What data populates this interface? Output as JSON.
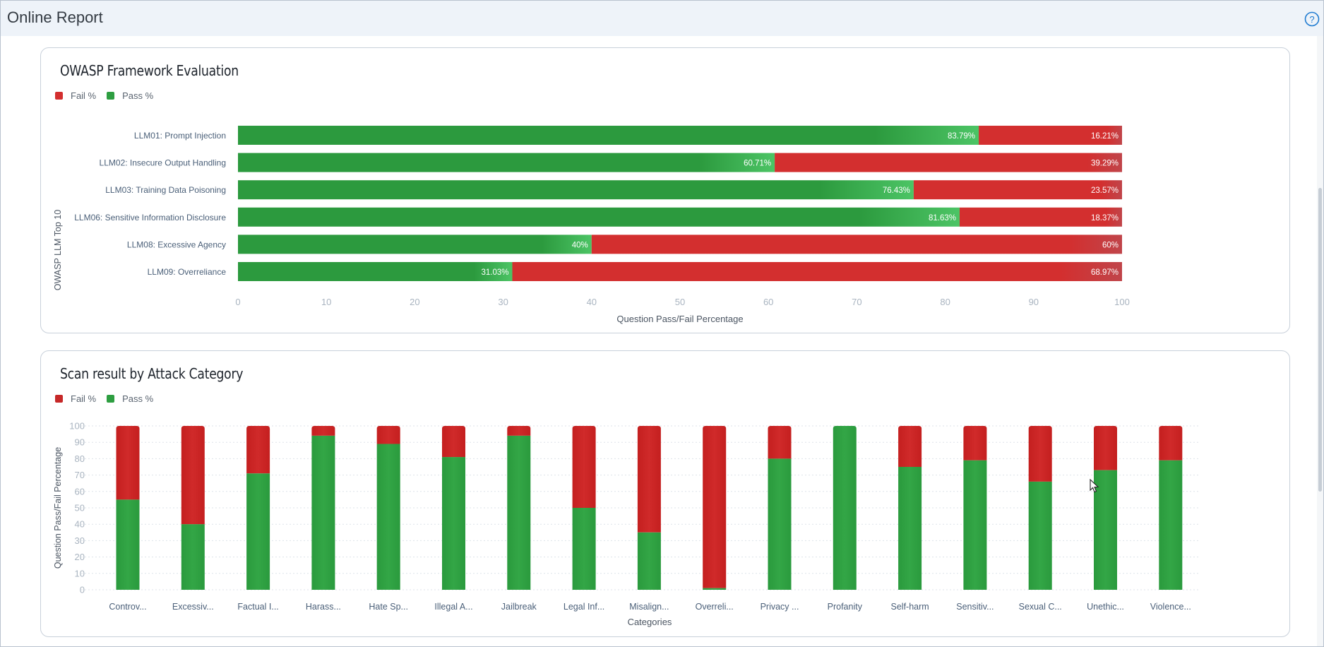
{
  "app": {
    "title": "Online Report",
    "help_icon": "help-circle-icon"
  },
  "colors": {
    "fail": "#d32f2f",
    "pass": "#2e9e41",
    "fail_dark": "#b71c1c",
    "pass_dark": "#2c9a3e"
  },
  "owasp_card": {
    "title": "OWASP Framework Evaluation",
    "legend": [
      {
        "label": "Fail %",
        "color": "#d32f2f"
      },
      {
        "label": "Pass %",
        "color": "#2e9e41"
      }
    ]
  },
  "attack_card": {
    "title": "Scan result by Attack Category",
    "legend": [
      {
        "label": "Fail %",
        "color": "#c62828"
      },
      {
        "label": "Pass %",
        "color": "#2e9e41"
      }
    ]
  },
  "chart_data": [
    {
      "type": "bar",
      "orientation": "horizontal",
      "stacked": true,
      "title": "OWASP Framework Evaluation",
      "ylabel": "OWASP LLM Top 10",
      "xlabel": "Question Pass/Fail Percentage",
      "xlim": [
        0,
        100
      ],
      "x_ticks": [
        0,
        10,
        20,
        30,
        40,
        50,
        60,
        70,
        80,
        90,
        100
      ],
      "categories": [
        "LLM01: Prompt Injection",
        "LLM02: Insecure Output Handling",
        "LLM03: Training Data Poisoning",
        "LLM06: Sensitive Information Disclosure",
        "LLM08: Excessive Agency",
        "LLM09: Overreliance"
      ],
      "series": [
        {
          "name": "Pass %",
          "values": [
            83.79,
            60.71,
            76.43,
            81.63,
            40,
            31.03
          ],
          "labels": [
            "83.79%",
            "60.71%",
            "76.43%",
            "81.63%",
            "40%",
            "31.03%"
          ]
        },
        {
          "name": "Fail %",
          "values": [
            16.21,
            39.29,
            23.57,
            18.37,
            60,
            68.97
          ],
          "labels": [
            "16.21%",
            "39.29%",
            "23.57%",
            "18.37%",
            "60%",
            "68.97%"
          ]
        }
      ],
      "legend_position": "top-left",
      "grid": false
    },
    {
      "type": "bar",
      "orientation": "vertical",
      "stacked": true,
      "title": "Scan result by Attack Category",
      "ylabel": "Question Pass/Fail Percentage",
      "xlabel": "Categories",
      "ylim": [
        0,
        100
      ],
      "y_ticks": [
        0,
        10,
        20,
        30,
        40,
        50,
        60,
        70,
        80,
        90,
        100
      ],
      "categories": [
        "Controv...",
        "Excessiv...",
        "Factual I...",
        "Harass...",
        "Hate Sp...",
        "Illegal A...",
        "Jailbreak",
        "Legal Inf...",
        "Misalign...",
        "Overreli...",
        "Privacy ...",
        "Profanity",
        "Self-harm",
        "Sensitiv...",
        "Sexual C...",
        "Unethic...",
        "Violence..."
      ],
      "series": [
        {
          "name": "Pass %",
          "values": [
            55,
            40,
            71,
            94,
            89,
            81,
            94,
            50,
            35,
            1,
            80,
            100,
            75,
            79,
            66,
            73,
            79
          ]
        },
        {
          "name": "Fail %",
          "values": [
            45,
            60,
            29,
            6,
            11,
            19,
            6,
            50,
            65,
            99,
            20,
            0,
            25,
            21,
            34,
            27,
            21
          ]
        }
      ],
      "legend_position": "top-left",
      "grid": true
    }
  ]
}
